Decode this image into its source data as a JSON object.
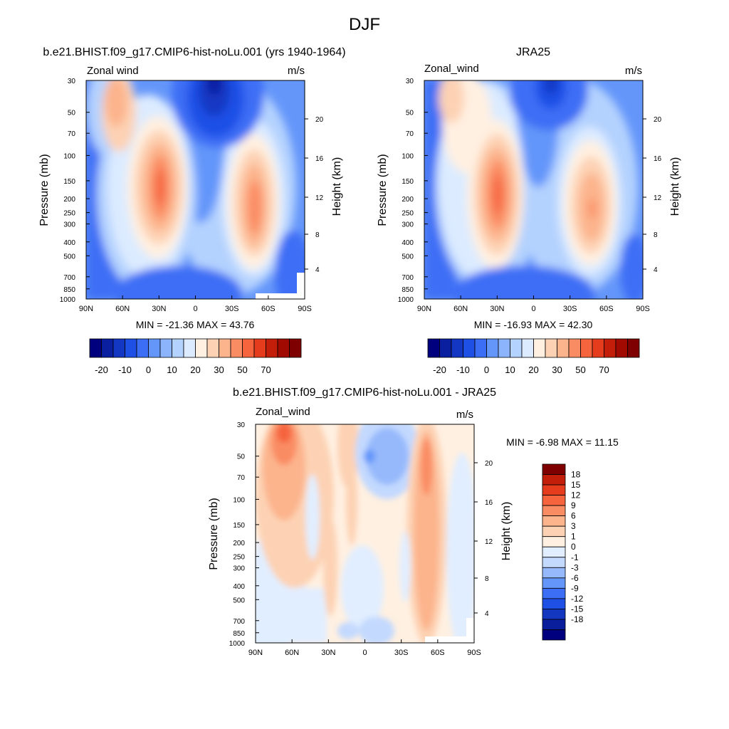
{
  "figure": {
    "title": "DJF"
  },
  "chart_data": [
    {
      "type": "heatmap",
      "title": "b.e21.BHIST.f09_g17.CMIP6-hist-noLu.001 (yrs 1940-1964)",
      "left_label": "Zonal wind",
      "right_label": "m/s",
      "xlabel": "",
      "ylabel": "Pressure (mb)",
      "y2label": "Height (km)",
      "x_ticks": [
        "90N",
        "60N",
        "30N",
        "0",
        "30S",
        "60S",
        "90S"
      ],
      "y_ticks": [
        "30",
        "50",
        "70",
        "100",
        "150",
        "200",
        "250",
        "300",
        "400",
        "500",
        "700",
        "850",
        "1000"
      ],
      "y2_ticks": [
        "20",
        "16",
        "12",
        "8",
        "4"
      ],
      "stats": "MIN = -21.36  MAX =  43.76",
      "colorbar_labels": [
        "-20",
        "-10",
        "0",
        "10",
        "20",
        "30",
        "50",
        "70"
      ],
      "grid": false
    },
    {
      "type": "heatmap",
      "title": "JRA25",
      "left_label": "Zonal_wind",
      "right_label": "m/s",
      "xlabel": "",
      "ylabel": "Pressure (mb)",
      "y2label": "Height (km)",
      "x_ticks": [
        "90N",
        "60N",
        "30N",
        "0",
        "30S",
        "60S",
        "90S"
      ],
      "y_ticks": [
        "30",
        "50",
        "70",
        "100",
        "150",
        "200",
        "250",
        "300",
        "400",
        "500",
        "700",
        "850",
        "1000"
      ],
      "y2_ticks": [
        "20",
        "16",
        "12",
        "8",
        "4"
      ],
      "stats": "MIN = -16.93  MAX =  42.30",
      "colorbar_labels": [
        "-20",
        "-10",
        "0",
        "10",
        "20",
        "30",
        "50",
        "70"
      ],
      "grid": false
    },
    {
      "type": "heatmap",
      "title": "b.e21.BHIST.f09_g17.CMIP6-hist-noLu.001 - JRA25",
      "left_label": "Zonal_wind",
      "right_label": "m/s",
      "xlabel": "",
      "ylabel": "Pressure (mb)",
      "y2label": "Height (km)",
      "x_ticks": [
        "90N",
        "60N",
        "30N",
        "0",
        "30S",
        "60S",
        "90S"
      ],
      "y_ticks": [
        "30",
        "50",
        "70",
        "100",
        "150",
        "200",
        "250",
        "300",
        "400",
        "500",
        "700",
        "850",
        "1000"
      ],
      "y2_ticks": [
        "20",
        "16",
        "12",
        "8",
        "4"
      ],
      "stats": "MIN =  -6.98  MAX =  11.15",
      "colorbar_labels": [
        "18",
        "15",
        "12",
        "9",
        "6",
        "3",
        "1",
        "0",
        "-1",
        "-3",
        "-6",
        "-9",
        "-12",
        "-15",
        "-18"
      ],
      "grid": false
    }
  ],
  "colors": {
    "scale": [
      "#00007f",
      "#0a1ea0",
      "#1437c3",
      "#1e50e6",
      "#3c6ef5",
      "#6496fa",
      "#8cb4fc",
      "#b4d2fe",
      "#dcebff",
      "#fff0e1",
      "#fdd2b4",
      "#fcb48c",
      "#fa8c64",
      "#f5643c",
      "#e63c1e",
      "#c31e0a",
      "#a00a00",
      "#7f0000"
    ],
    "contrast": [
      "#00007f",
      "#0a1e9b",
      "#1437bf",
      "#1e50e6",
      "#3c6ef5",
      "#6496fa",
      "#96b9fc",
      "#c3d9fe",
      "#e1eeff",
      "#fff0e1",
      "#fdd2b4",
      "#fcb48c",
      "#fa8c64",
      "#f5643c",
      "#e63c1e",
      "#c31e0a",
      "#7f0000"
    ]
  }
}
